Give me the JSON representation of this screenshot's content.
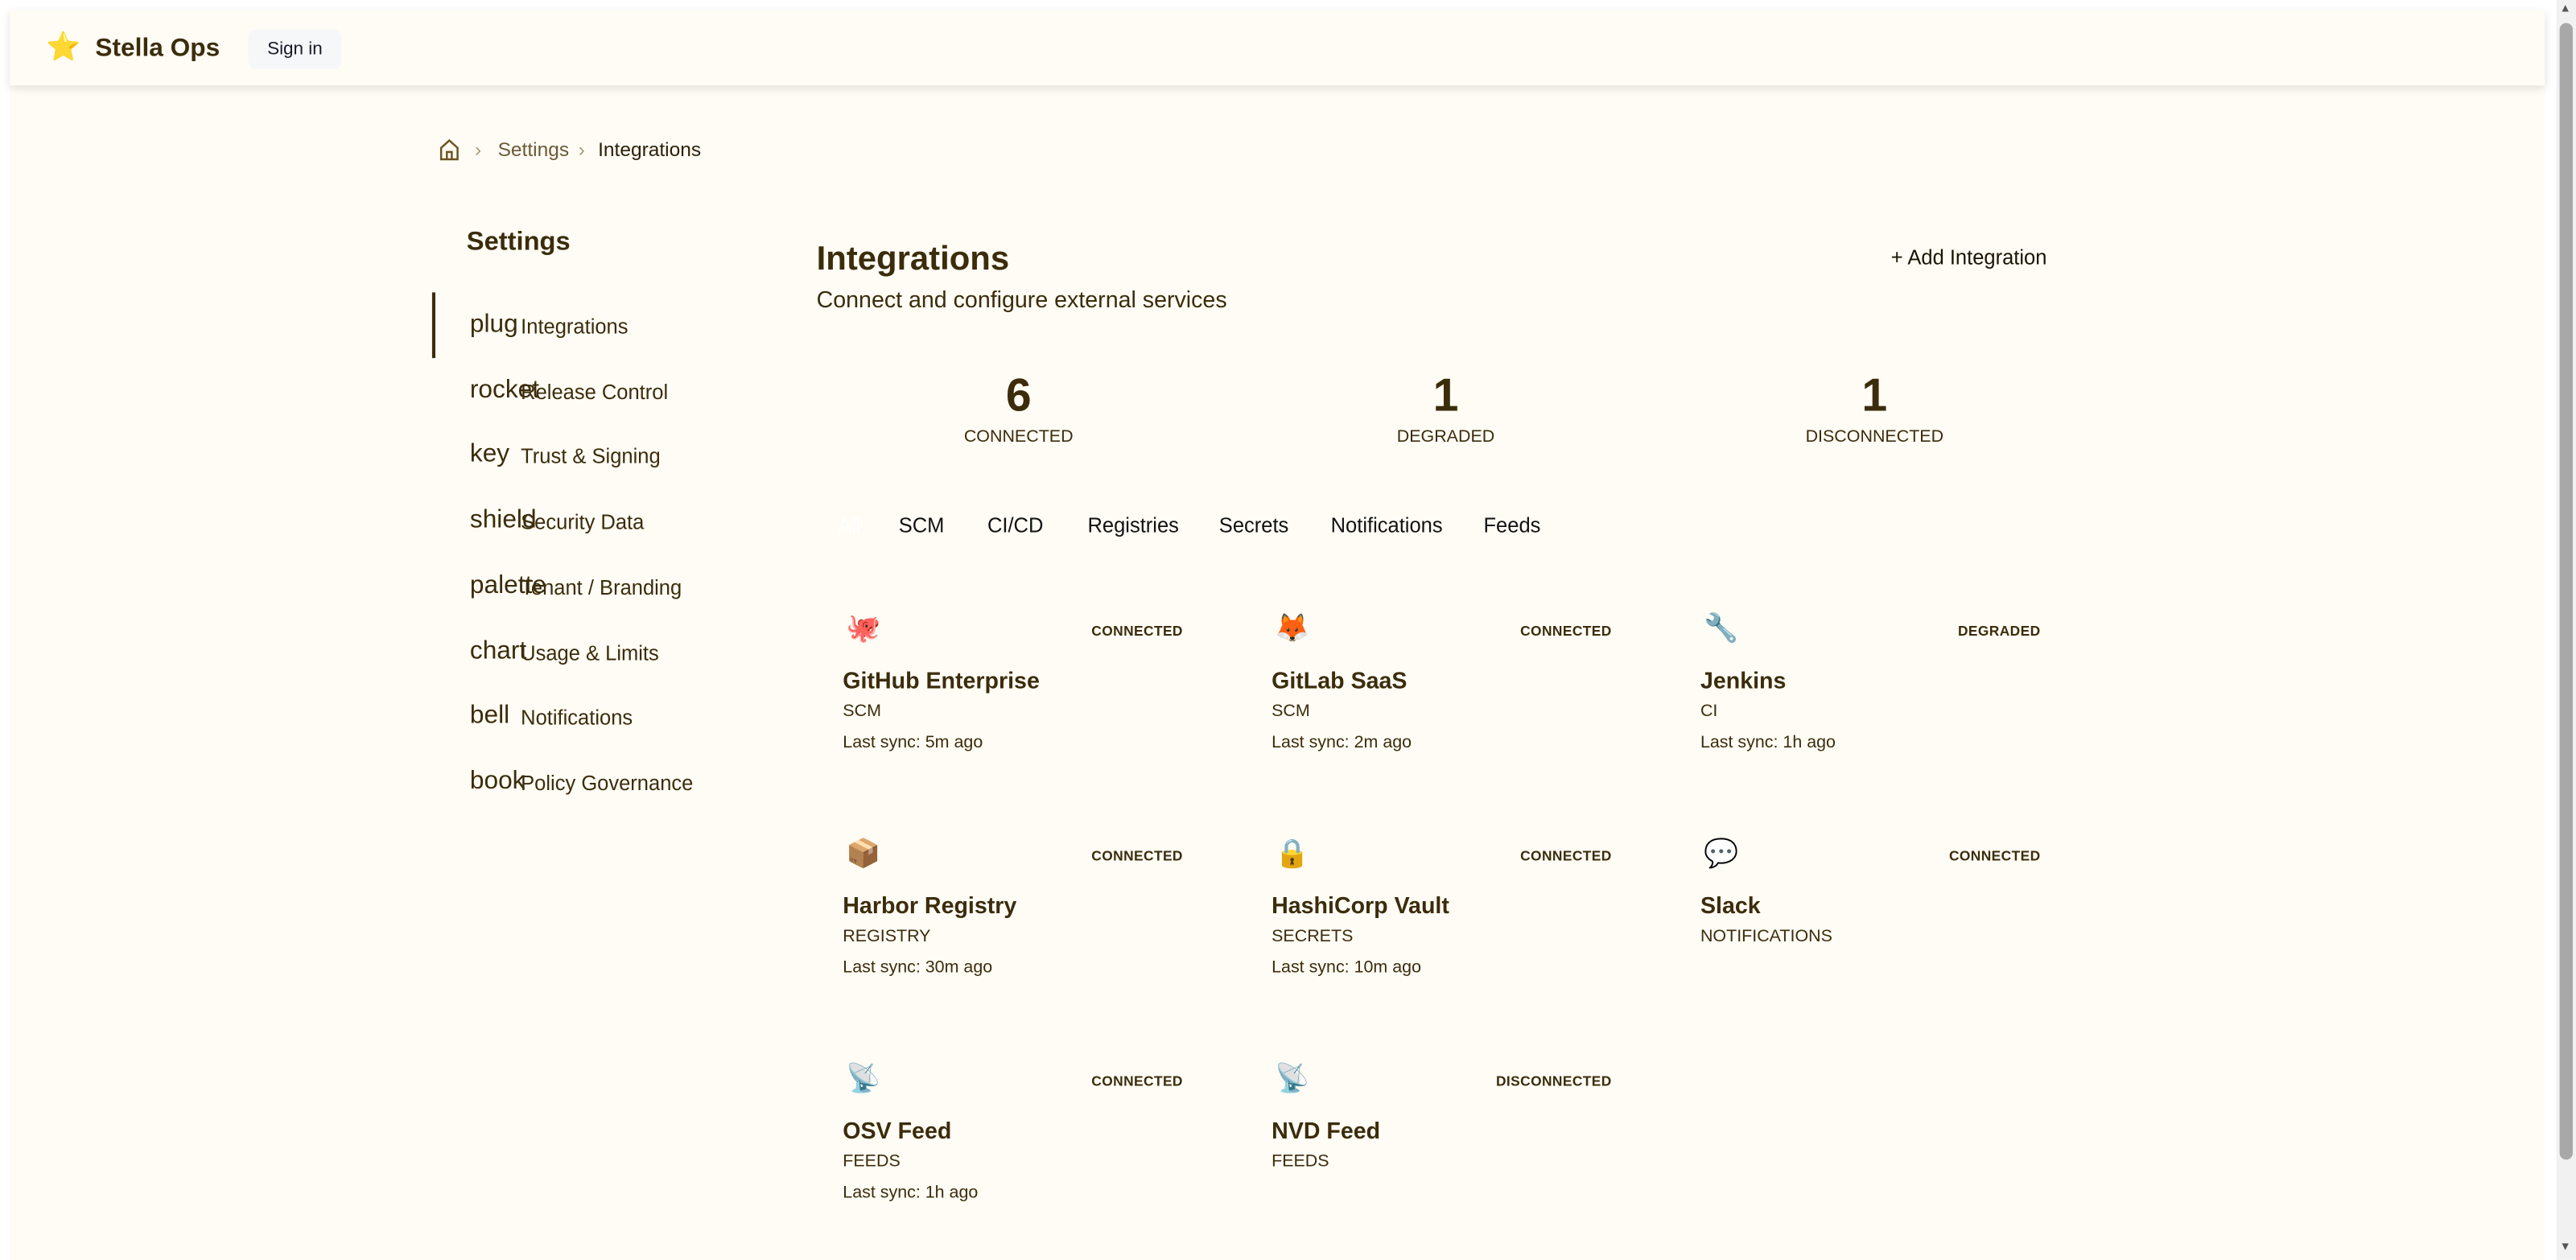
{
  "header": {
    "brand": "Stella Ops",
    "logo_icon": "star-mascot-icon",
    "sign_in": "Sign in"
  },
  "breadcrumb": {
    "home_icon": "home-icon",
    "items": [
      "Settings",
      "Integrations"
    ]
  },
  "sidebar": {
    "title": "Settings",
    "items": [
      {
        "icon": "plug",
        "label": "Integrations",
        "active": true
      },
      {
        "icon": "rocket",
        "label": "Release Control"
      },
      {
        "icon": "key",
        "label": "Trust & Signing"
      },
      {
        "icon": "shield",
        "label": "Security Data"
      },
      {
        "icon": "palette",
        "label": "Tenant / Branding"
      },
      {
        "icon": "chart",
        "label": "Usage & Limits"
      },
      {
        "icon": "bell",
        "label": "Notifications"
      },
      {
        "icon": "book",
        "label": "Policy Governance"
      }
    ]
  },
  "main": {
    "title": "Integrations",
    "subtitle": "Connect and configure external services",
    "add_button": "+ Add Integration",
    "stats": [
      {
        "value": "6",
        "label": "CONNECTED"
      },
      {
        "value": "1",
        "label": "DEGRADED"
      },
      {
        "value": "1",
        "label": "DISCONNECTED"
      }
    ],
    "tabs": [
      {
        "label": "All",
        "active": true
      },
      {
        "label": "SCM"
      },
      {
        "label": "CI/CD"
      },
      {
        "label": "Registries"
      },
      {
        "label": "Secrets"
      },
      {
        "label": "Notifications"
      },
      {
        "label": "Feeds"
      }
    ],
    "cards": [
      {
        "icon": "🐙",
        "name": "GitHub Enterprise",
        "type": "SCM",
        "status": "CONNECTED",
        "sync": "Last sync: 5m ago"
      },
      {
        "icon": "🦊",
        "name": "GitLab SaaS",
        "type": "SCM",
        "status": "CONNECTED",
        "sync": "Last sync: 2m ago"
      },
      {
        "icon": "🔧",
        "name": "Jenkins",
        "type": "CI",
        "status": "DEGRADED",
        "sync": "Last sync: 1h ago"
      },
      {
        "icon": "📦",
        "name": "Harbor Registry",
        "type": "REGISTRY",
        "status": "CONNECTED",
        "sync": "Last sync: 30m ago"
      },
      {
        "icon": "🔒",
        "name": "HashiCorp Vault",
        "type": "SECRETS",
        "status": "CONNECTED",
        "sync": "Last sync: 10m ago"
      },
      {
        "icon": "💬",
        "name": "Slack",
        "type": "NOTIFICATIONS",
        "status": "CONNECTED"
      },
      {
        "icon": "📡",
        "name": "OSV Feed",
        "type": "FEEDS",
        "status": "CONNECTED",
        "sync": "Last sync: 1h ago"
      },
      {
        "icon": "📡",
        "name": "NVD Feed",
        "type": "FEEDS",
        "status": "DISCONNECTED"
      }
    ]
  },
  "colors": {
    "background": "#fffcf5",
    "text": "#3b2c0c"
  }
}
